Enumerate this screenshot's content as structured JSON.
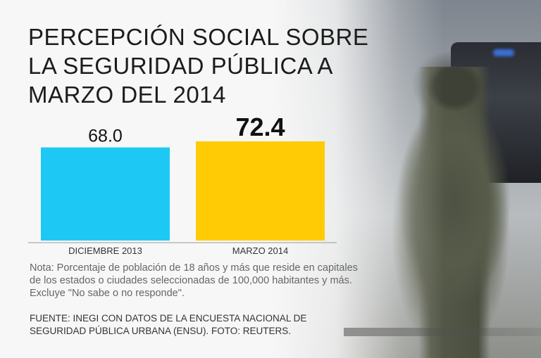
{
  "title": "PERCEPCIÓN SOCIAL SOBRE LA SEGURIDAD PÚBLICA A MARZO DEL 2014",
  "chart_data": {
    "type": "bar",
    "title": "PERCEPCIÓN SOCIAL SOBRE LA SEGURIDAD PÚBLICA A MARZO DEL 2014",
    "categories": [
      "DICIEMBRE 2013",
      "MARZO 2014"
    ],
    "values": [
      68.0,
      72.4
    ],
    "value_labels": [
      "68.0",
      "72.4"
    ],
    "colors": [
      "#1ec8f4",
      "#ffcb05"
    ],
    "ylim": [
      0,
      72.4
    ],
    "xlabel": "",
    "ylabel": "",
    "grid": false
  },
  "note": "Nota: Porcentaje de población de 18 años y más que reside en capitales de los estados o ciudades seleccionadas de 100,000 habitantes y más. Excluye \"No sabe o no responde\".",
  "source": "FUENTE: INEGI CON DATOS DE LA ENCUESTA NACIONAL DE SEGURIDAD PÚBLICA URBANA (ENSU). FOTO: REUTERS."
}
